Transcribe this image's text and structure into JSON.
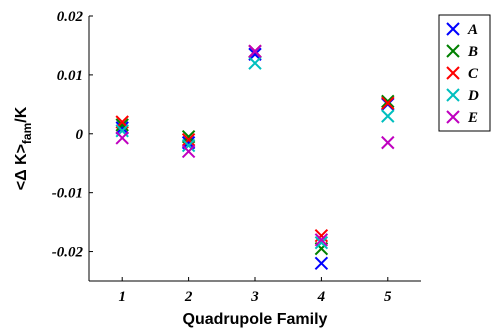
{
  "chart_data": {
    "type": "scatter",
    "title": "",
    "xlabel": "Quadrupole Family",
    "ylabel_parts": {
      "main": "<Δ K>",
      "sub": "fam",
      "tail": "/K"
    },
    "xlim": [
      0.5,
      5.5
    ],
    "ylim": [
      -0.025,
      0.02
    ],
    "xticks": [
      1,
      2,
      3,
      4,
      5
    ],
    "xtick_labels": [
      "1",
      "2",
      "3",
      "4",
      "5"
    ],
    "yticks": [
      -0.02,
      -0.01,
      0,
      0.01,
      0.02
    ],
    "ytick_labels": [
      "-0.02",
      "-0.01",
      "0",
      "0.01",
      "0.02"
    ],
    "grid": false,
    "legend_position": "outside-top-right",
    "marker": "x",
    "x": [
      1,
      2,
      3,
      4,
      5
    ],
    "series": [
      {
        "name": "A",
        "color": "#0000ff",
        "values": [
          0.001,
          -0.0015,
          0.0135,
          -0.022,
          0.005
        ]
      },
      {
        "name": "B",
        "color": "#008000",
        "values": [
          0.0015,
          -0.0005,
          0.014,
          -0.0195,
          0.0055
        ]
      },
      {
        "name": "C",
        "color": "#ff0000",
        "values": [
          0.002,
          -0.001,
          0.014,
          -0.0173,
          0.0052
        ]
      },
      {
        "name": "D",
        "color": "#00bfbf",
        "values": [
          0.0005,
          -0.002,
          0.012,
          -0.0185,
          0.003
        ]
      },
      {
        "name": "E",
        "color": "#bf00bf",
        "values": [
          -0.0007,
          -0.003,
          0.014,
          -0.018,
          -0.0015
        ]
      }
    ]
  }
}
